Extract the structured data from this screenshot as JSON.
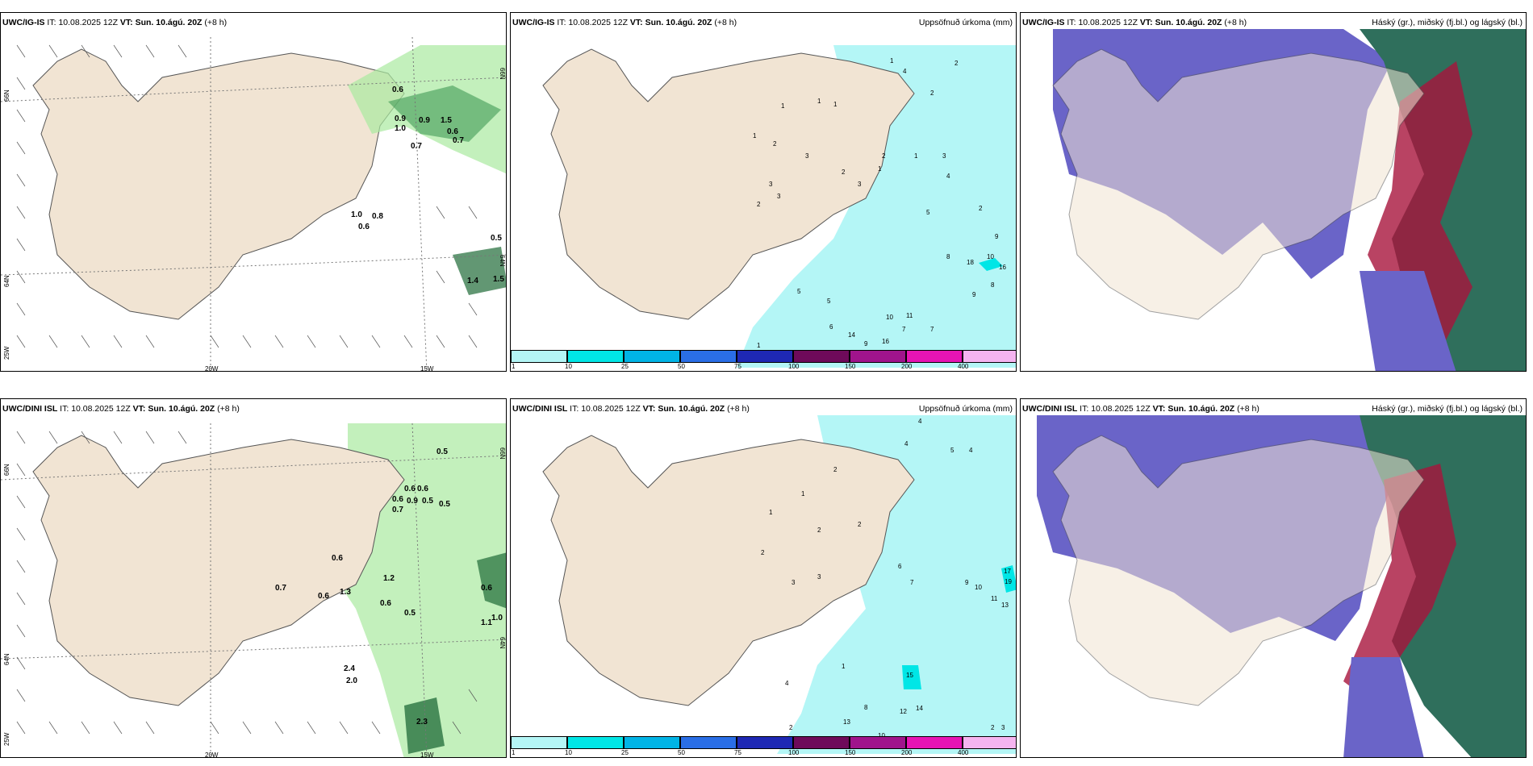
{
  "colors": {
    "land": "#f1e4d3",
    "sea": "#ffffff",
    "precip": "#b4f6f6",
    "precip_mid": "#00e6e6",
    "cloud_low": "#6a64c8",
    "cloud_high": "#2f6f5c",
    "cloud_mid": "#a8143c",
    "wind_green": "#a9e9a0"
  },
  "panels": [
    {
      "id": "top-wind",
      "model": "UWC/IG-IS",
      "it_label": "IT:",
      "it_value": "10.08.2025 12Z",
      "vt_label": "VT:",
      "vt_value": "Sun. 10.ágú. 20Z",
      "lead": "(+8 h)",
      "right_title": "",
      "lat_labels": [
        "66N",
        "64N",
        "25W"
      ],
      "right_lat_labels": [
        "66N",
        "64N"
      ],
      "lon_labels": [
        "20W",
        "15W"
      ],
      "values": [
        "0.6",
        "0.9",
        "1.0",
        "0.9",
        "1.5",
        "0.6",
        "0.7",
        "0.7",
        "0.8",
        "1.0",
        "0.6",
        "0.5",
        "1.4",
        "1.5"
      ]
    },
    {
      "id": "top-precip",
      "model": "UWC/IG-IS",
      "it_label": "IT:",
      "it_value": "10.08.2025 12Z",
      "vt_label": "VT:",
      "vt_value": "Sun. 10.ágú. 20Z",
      "lead": "(+8 h)",
      "right_title": "Uppsöfnuð úrkoma (mm)",
      "values": [
        "1",
        "4",
        "2",
        "2",
        "1",
        "1",
        "1",
        "1",
        "2",
        "2",
        "2",
        "1",
        "3",
        "3",
        "1",
        "3",
        "2",
        "3",
        "3",
        "4",
        "5",
        "2",
        "8",
        "9",
        "10",
        "16",
        "18",
        "8",
        "9",
        "10",
        "11",
        "6",
        "7",
        "14",
        "16",
        "9",
        "5",
        "5",
        "7",
        "1"
      ],
      "colorbar": [
        "1",
        "10",
        "25",
        "50",
        "75",
        "100",
        "150",
        "200",
        "400"
      ]
    },
    {
      "id": "top-cloud",
      "model": "UWC/IG-IS",
      "it_label": "IT:",
      "it_value": "10.08.2025 12Z",
      "vt_label": "VT:",
      "vt_value": "Sun. 10.ágú. 20Z",
      "lead": "(+8 h)",
      "right_title": "Háský (gr.), miðský (fj.bl.) og lágský (bl.)"
    },
    {
      "id": "bottom-wind",
      "model": "UWC/DINI ISL",
      "it_label": "IT:",
      "it_value": "10.08.2025 12Z",
      "vt_label": "VT:",
      "vt_value": "Sun. 10.ágú. 20Z",
      "lead": "(+8 h)",
      "right_title": "",
      "lat_labels": [
        "66N",
        "64N",
        "25W"
      ],
      "right_lat_labels": [
        "66N",
        "64N"
      ],
      "lon_labels": [
        "20W",
        "15W"
      ],
      "values": [
        "0.5",
        "0.6",
        "0.6",
        "0.6",
        "0.9",
        "0.5",
        "0.5",
        "0.7",
        "0.6",
        "0.7",
        "0.6",
        "1.3",
        "0.6",
        "0.5",
        "0.6",
        "1.0",
        "1.1",
        "2.4",
        "2.0",
        "2.3",
        "1.2"
      ]
    },
    {
      "id": "bottom-precip",
      "model": "UWC/DINI ISL",
      "it_label": "IT:",
      "it_value": "10.08.2025 12Z",
      "vt_label": "VT:",
      "vt_value": "Sun. 10.ágú. 20Z",
      "lead": "(+8 h)",
      "right_title": "Uppsöfnuð úrkoma (mm)",
      "values": [
        "4",
        "4",
        "5",
        "4",
        "2",
        "1",
        "1",
        "2",
        "2",
        "3",
        "3",
        "2",
        "6",
        "7",
        "9",
        "10",
        "11",
        "17",
        "19",
        "13",
        "15",
        "14",
        "12",
        "13",
        "8",
        "10",
        "2",
        "3",
        "4",
        "1",
        "2"
      ],
      "colorbar": [
        "1",
        "10",
        "25",
        "50",
        "75",
        "100",
        "150",
        "200",
        "400"
      ]
    },
    {
      "id": "bottom-cloud",
      "model": "UWC/DINI ISL",
      "it_label": "IT:",
      "it_value": "10.08.2025 12Z",
      "vt_label": "VT:",
      "vt_value": "Sun. 10.ágú. 20Z",
      "lead": "(+8 h)",
      "right_title": "Háský (gr.), miðský (fj.bl.) og lágský (bl.)"
    }
  ],
  "colorbar_colors": [
    "#b4f6f6",
    "#00e6e6",
    "#00b4e6",
    "#2a6ee6",
    "#1e28b4",
    "#6e0a5a",
    "#a0148c",
    "#e614b4",
    "#f5b4f0"
  ]
}
